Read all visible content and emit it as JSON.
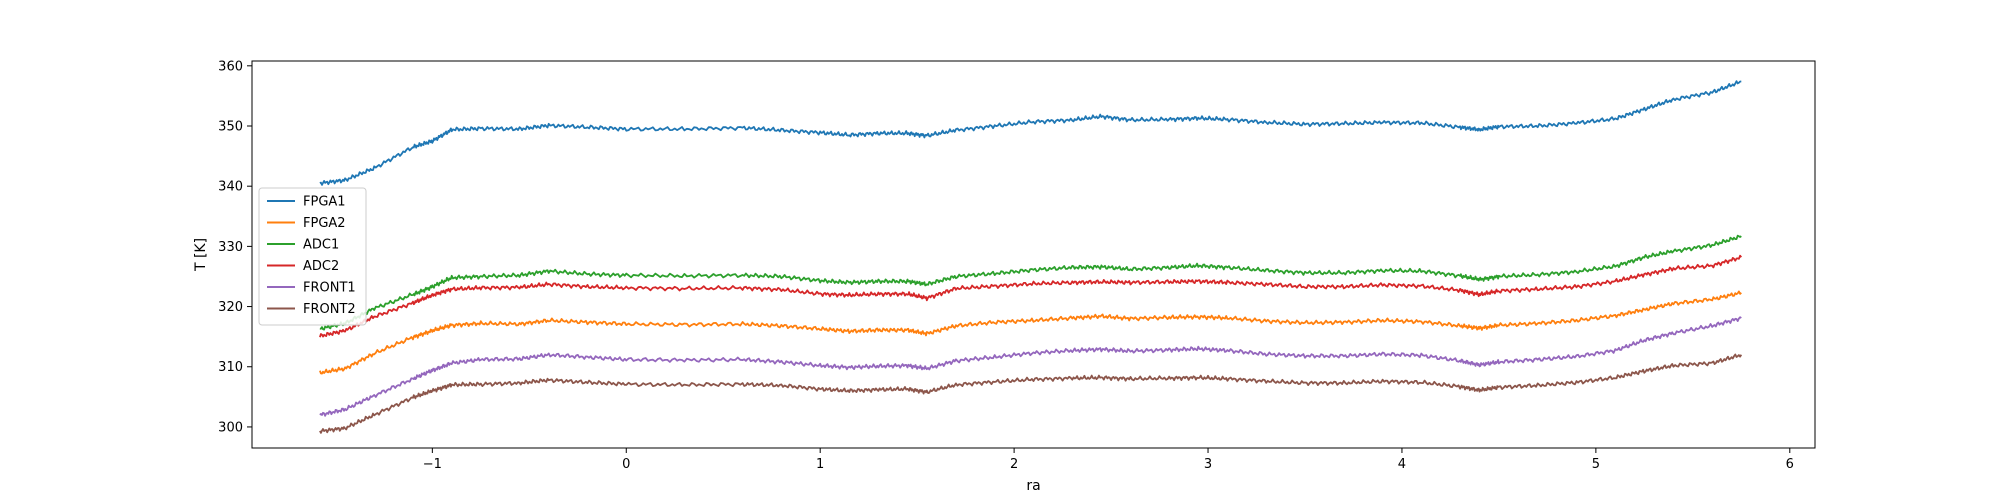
{
  "chart_data": {
    "type": "line",
    "title": "",
    "xlabel": "ra",
    "ylabel": "T [K]",
    "xlim": [
      -1.93,
      6.13
    ],
    "ylim": [
      296.5,
      360.8
    ],
    "xticks": [
      -1,
      0,
      1,
      2,
      3,
      4,
      5,
      6
    ],
    "xtick_labels": [
      "−1",
      "0",
      "1",
      "2",
      "3",
      "4",
      "5",
      "6"
    ],
    "yticks": [
      300,
      310,
      320,
      330,
      340,
      350,
      360
    ],
    "ytick_labels": [
      "300",
      "310",
      "320",
      "330",
      "340",
      "350",
      "360"
    ],
    "grid": false,
    "legend_position": "center-left",
    "x": [
      -1.58,
      -1.45,
      -1.3,
      -1.1,
      -1.0,
      -0.9,
      -0.75,
      -0.55,
      -0.4,
      -0.2,
      0.0,
      0.3,
      0.6,
      0.8,
      1.0,
      1.15,
      1.3,
      1.45,
      1.55,
      1.7,
      1.9,
      2.1,
      2.3,
      2.45,
      2.6,
      2.8,
      2.95,
      3.1,
      3.3,
      3.5,
      3.7,
      3.9,
      4.1,
      4.3,
      4.4,
      4.5,
      4.7,
      4.9,
      5.1,
      5.25,
      5.4,
      5.6,
      5.75
    ],
    "series": [
      {
        "name": "FPGA1",
        "color": "#1f77b4",
        "values": [
          340.5,
          341.0,
          343.0,
          346.5,
          347.5,
          349.4,
          349.6,
          349.5,
          350.1,
          349.8,
          349.5,
          349.5,
          349.7,
          349.3,
          348.9,
          348.5,
          348.8,
          348.8,
          348.4,
          349.3,
          350.0,
          350.7,
          351.0,
          351.6,
          351.0,
          351.1,
          351.3,
          351.1,
          350.6,
          350.3,
          350.4,
          350.6,
          350.5,
          349.8,
          349.4,
          349.9,
          350.0,
          350.5,
          351.2,
          352.8,
          354.4,
          355.6,
          357.4
        ]
      },
      {
        "name": "FPGA2",
        "color": "#ff7f0e",
        "values": [
          309.0,
          309.7,
          312.2,
          314.9,
          316.0,
          316.9,
          317.2,
          317.1,
          317.7,
          317.4,
          317.1,
          317.0,
          317.1,
          316.8,
          316.3,
          315.9,
          316.1,
          316.1,
          315.5,
          316.8,
          317.4,
          317.7,
          318.1,
          318.4,
          318.0,
          318.2,
          318.3,
          318.1,
          317.6,
          317.3,
          317.4,
          317.7,
          317.5,
          316.8,
          316.4,
          316.9,
          317.2,
          317.7,
          318.5,
          319.5,
          320.5,
          321.2,
          322.3
        ]
      },
      {
        "name": "ADC1",
        "color": "#2ca02c",
        "values": [
          316.3,
          317.2,
          319.7,
          322.0,
          323.3,
          324.8,
          325.0,
          325.2,
          325.9,
          325.4,
          325.2,
          325.1,
          325.2,
          325.0,
          324.3,
          324.0,
          324.2,
          324.2,
          323.7,
          325.0,
          325.5,
          326.1,
          326.5,
          326.6,
          326.2,
          326.5,
          326.8,
          326.5,
          326.0,
          325.6,
          325.6,
          326.0,
          325.9,
          325.1,
          324.5,
          325.0,
          325.3,
          325.8,
          326.7,
          328.2,
          329.2,
          330.2,
          331.7
        ]
      },
      {
        "name": "ADC2",
        "color": "#d62728",
        "values": [
          315.1,
          316.0,
          318.3,
          320.6,
          321.9,
          322.9,
          323.1,
          323.2,
          323.7,
          323.3,
          323.1,
          323.0,
          323.1,
          322.8,
          322.1,
          321.9,
          322.1,
          322.1,
          321.4,
          323.0,
          323.4,
          323.8,
          324.0,
          324.1,
          324.0,
          324.1,
          324.2,
          324.0,
          323.7,
          323.3,
          323.3,
          323.6,
          323.4,
          322.7,
          322.0,
          322.6,
          322.9,
          323.3,
          324.2,
          325.3,
          326.3,
          326.8,
          328.2
        ]
      },
      {
        "name": "FRONT1",
        "color": "#9467bd",
        "values": [
          302.0,
          302.9,
          305.2,
          308.0,
          309.4,
          310.6,
          311.2,
          311.3,
          312.0,
          311.6,
          311.2,
          311.1,
          311.2,
          310.8,
          310.2,
          309.9,
          310.1,
          310.2,
          309.7,
          311.0,
          311.6,
          312.3,
          312.7,
          312.9,
          312.6,
          312.8,
          313.0,
          312.7,
          312.1,
          311.8,
          311.8,
          312.1,
          311.9,
          311.0,
          310.3,
          310.8,
          311.2,
          311.7,
          312.7,
          314.4,
          315.6,
          316.8,
          318.1
        ]
      },
      {
        "name": "FRONT2",
        "color": "#8c564b",
        "values": [
          299.3,
          299.8,
          302.0,
          304.9,
          306.0,
          307.0,
          307.1,
          307.3,
          307.8,
          307.4,
          307.1,
          307.0,
          307.1,
          306.9,
          306.3,
          306.0,
          306.2,
          306.3,
          305.8,
          307.0,
          307.5,
          307.9,
          308.1,
          308.2,
          308.0,
          308.1,
          308.2,
          308.0,
          307.6,
          307.3,
          307.3,
          307.6,
          307.4,
          306.7,
          306.1,
          306.6,
          306.9,
          307.4,
          308.2,
          309.3,
          310.2,
          310.6,
          312.0
        ]
      }
    ]
  }
}
